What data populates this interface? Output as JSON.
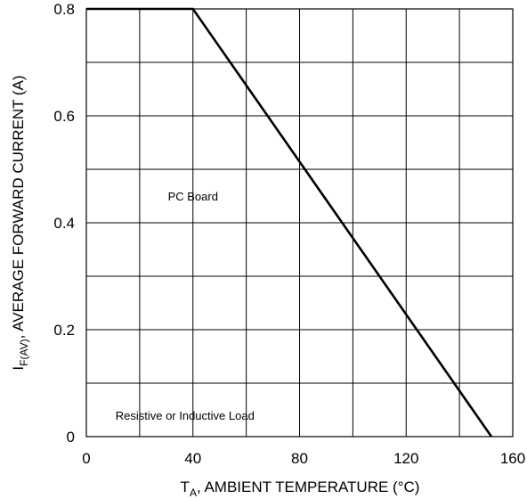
{
  "chart_data": {
    "type": "line",
    "title": "",
    "xlabel": {
      "main": "T",
      "sub": "A",
      "rest": ", AMBIENT TEMPERATURE (°C)"
    },
    "ylabel": {
      "main": "I",
      "sub": "F(AV)",
      "rest": ", AVERAGE FORWARD CURRENT (A)"
    },
    "xlim": [
      0,
      160
    ],
    "ylim": [
      0,
      0.8
    ],
    "x_ticks": [
      0,
      40,
      80,
      120,
      160
    ],
    "x_tick_labels": [
      "0",
      "40",
      "80",
      "120",
      "160"
    ],
    "y_ticks": [
      0,
      0.2,
      0.4,
      0.6,
      0.8
    ],
    "y_tick_labels": [
      "0",
      "0.2",
      "0.4",
      "0.6",
      "0.8"
    ],
    "x_gridlines": [
      0,
      20,
      40,
      60,
      80,
      100,
      120,
      140,
      160
    ],
    "y_gridlines": [
      0,
      0.1,
      0.2,
      0.3,
      0.4,
      0.5,
      0.6,
      0.7,
      0.8
    ],
    "grid": true,
    "series": [
      {
        "x": [
          0,
          40,
          152
        ],
        "y": [
          0.8,
          0.8,
          0
        ]
      }
    ],
    "annotations": [
      {
        "text": "PC Board",
        "x": 40,
        "y": 0.45
      },
      {
        "text": "Resistive or Inductive Load",
        "x": 37,
        "y": 0.04
      }
    ]
  }
}
